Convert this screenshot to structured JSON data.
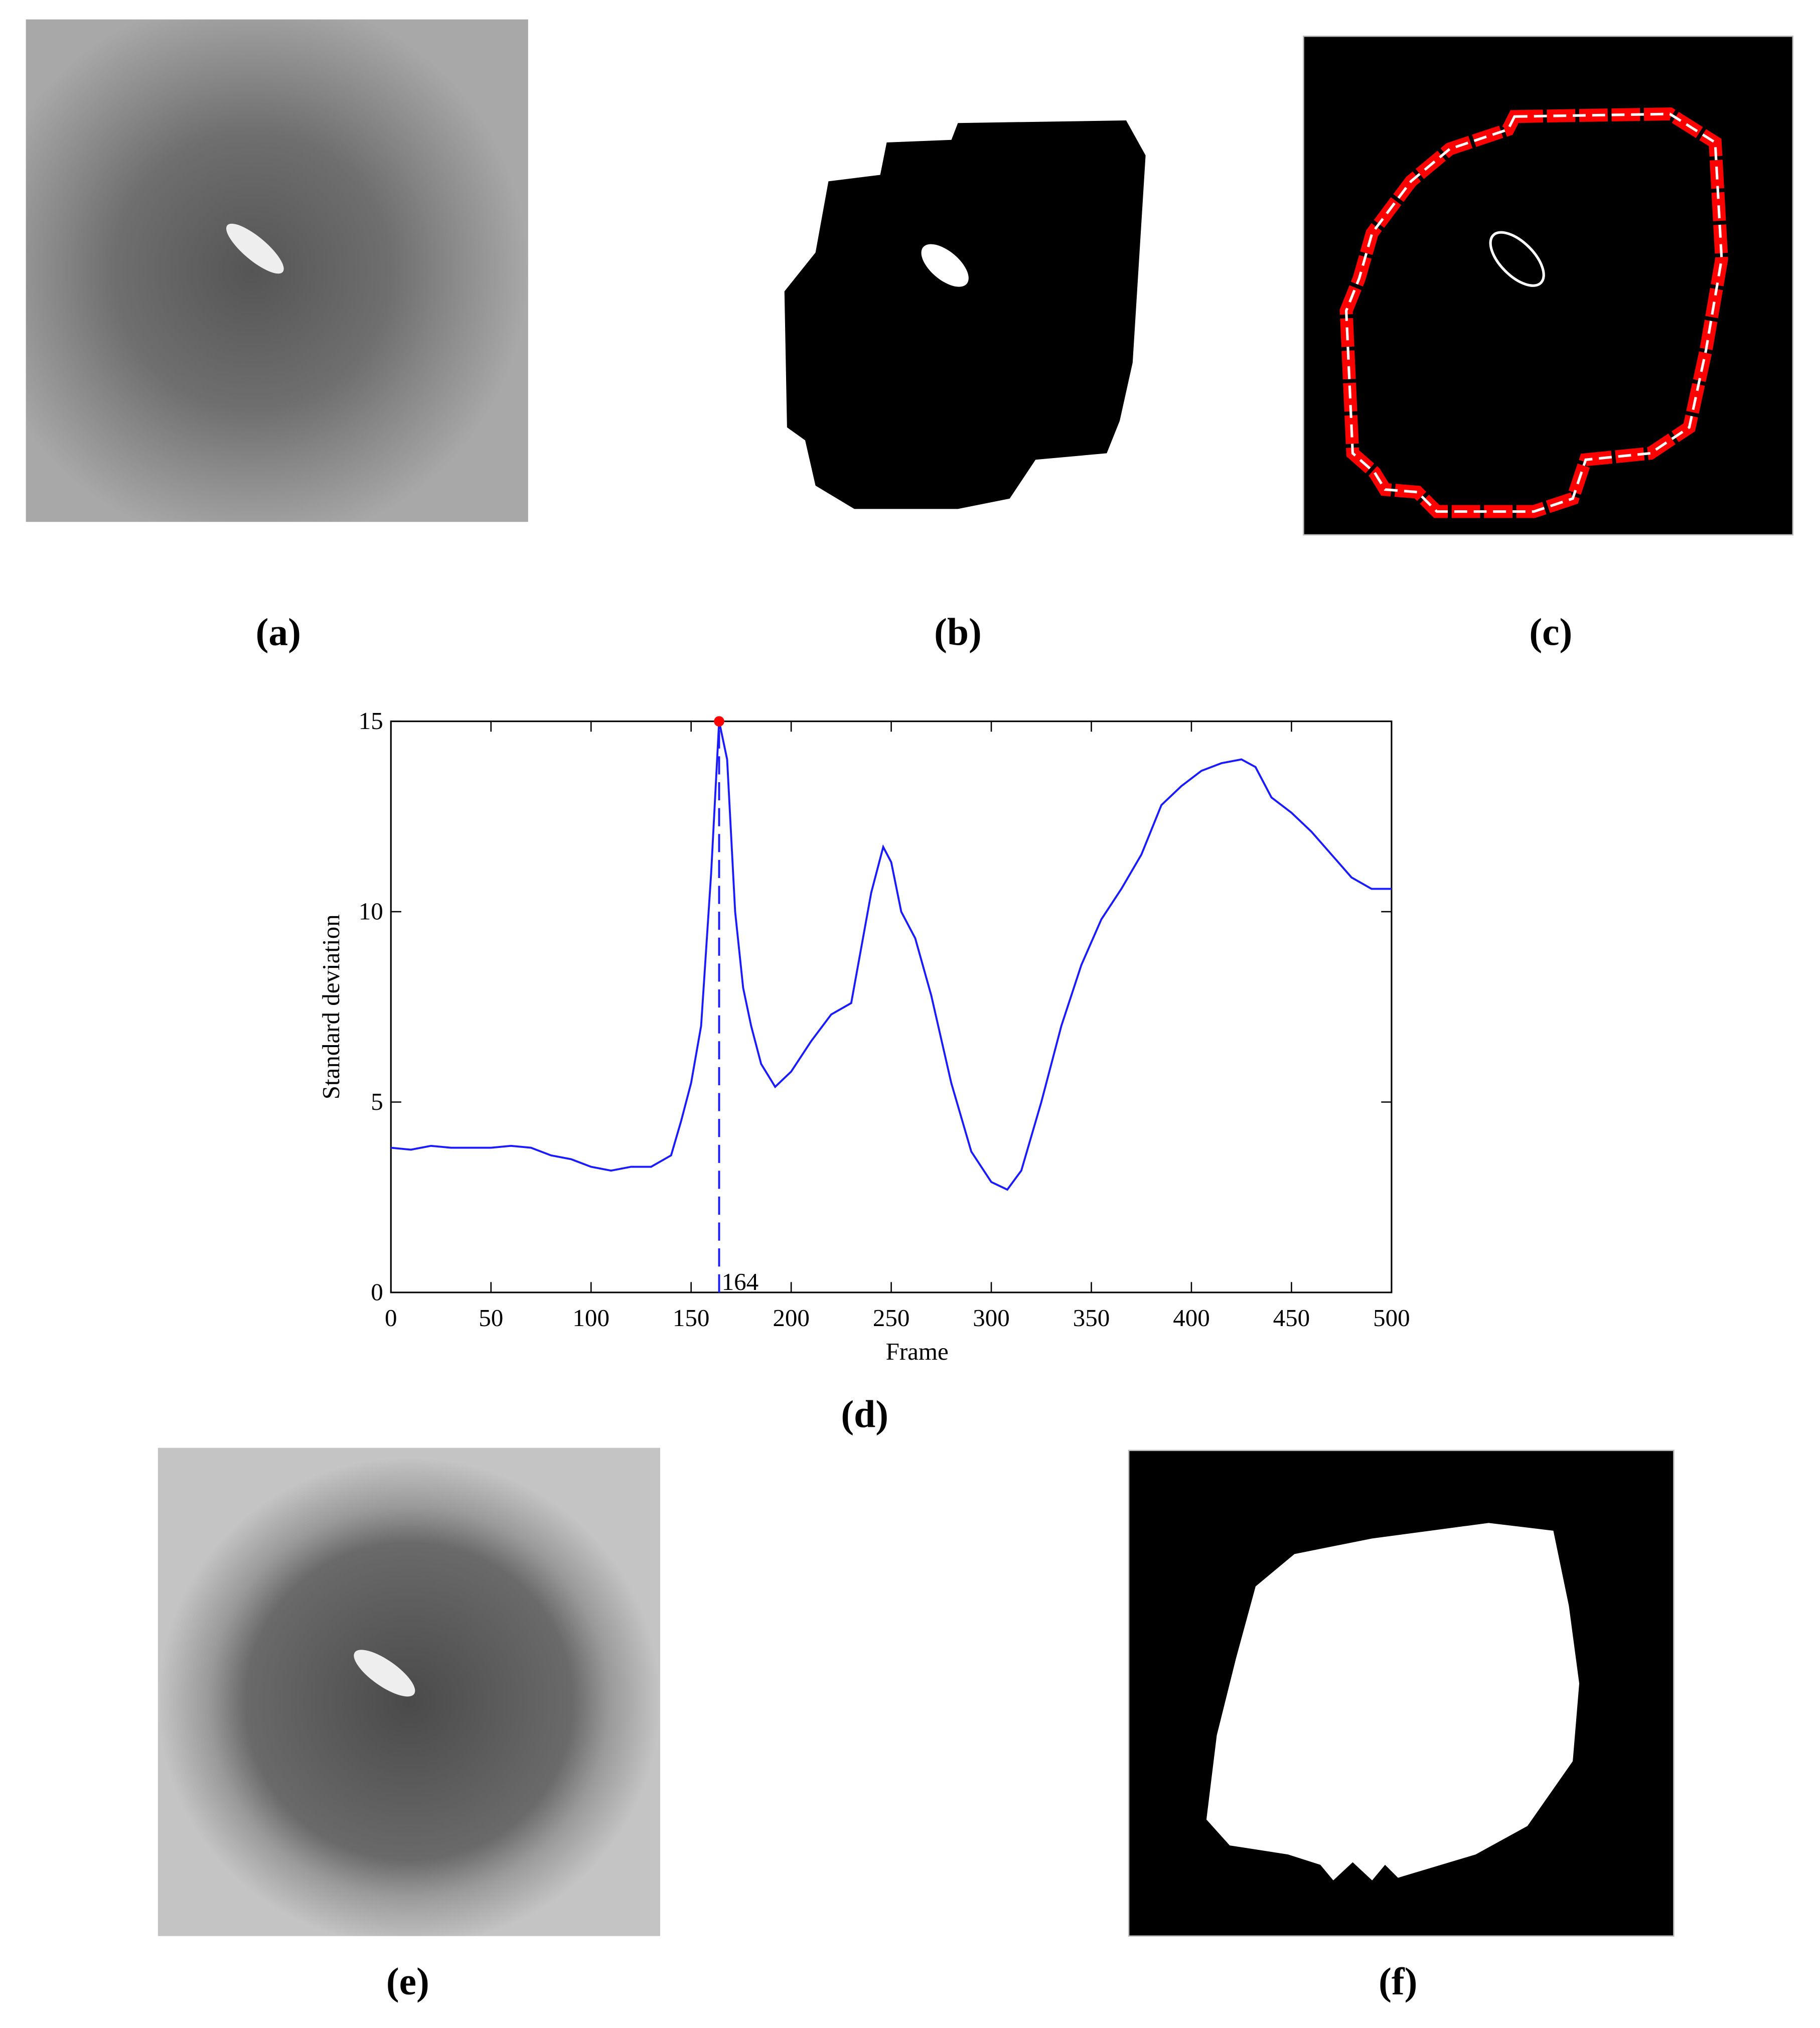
{
  "panels": {
    "a": "(a)",
    "b": "(b)",
    "c": "(c)",
    "d": "(d)",
    "e": "(e)",
    "f": "(f)"
  },
  "chart_data": {
    "type": "line",
    "x_label": "Frame",
    "y_label": "Standard deviation",
    "x": [
      0,
      10,
      20,
      30,
      40,
      50,
      60,
      70,
      80,
      90,
      100,
      110,
      120,
      130,
      140,
      145,
      150,
      155,
      160,
      164,
      168,
      172,
      176,
      180,
      185,
      192,
      200,
      210,
      220,
      230,
      240,
      246,
      250,
      255,
      262,
      270,
      280,
      290,
      300,
      308,
      315,
      325,
      335,
      345,
      355,
      365,
      375,
      385,
      395,
      405,
      415,
      425,
      432,
      440,
      450,
      460,
      470,
      480,
      490,
      500
    ],
    "values": [
      3.8,
      3.75,
      3.85,
      3.8,
      3.8,
      3.8,
      3.85,
      3.8,
      3.6,
      3.5,
      3.3,
      3.2,
      3.3,
      3.3,
      3.6,
      4.5,
      5.5,
      7.0,
      11,
      15,
      14,
      10,
      8,
      7,
      6,
      5.4,
      5.8,
      6.6,
      7.3,
      7.6,
      10.5,
      11.7,
      11.3,
      10,
      9.3,
      7.8,
      5.5,
      3.7,
      2.9,
      2.7,
      3.2,
      5.0,
      7.0,
      8.6,
      9.8,
      10.6,
      11.5,
      12.8,
      13.3,
      13.7,
      13.9,
      14.0,
      13.8,
      13.0,
      12.6,
      12.1,
      11.5,
      10.9,
      10.6,
      10.6
    ],
    "color": "#1a1aff",
    "peak": {
      "x": 164,
      "y": 15,
      "color": "#ff0000"
    },
    "xlim": [
      0,
      500
    ],
    "xticks": [
      0,
      50,
      100,
      150,
      200,
      250,
      300,
      350,
      400,
      450,
      500
    ],
    "ylim": [
      0,
      15
    ],
    "yticks": [
      0,
      5,
      10,
      15
    ]
  }
}
